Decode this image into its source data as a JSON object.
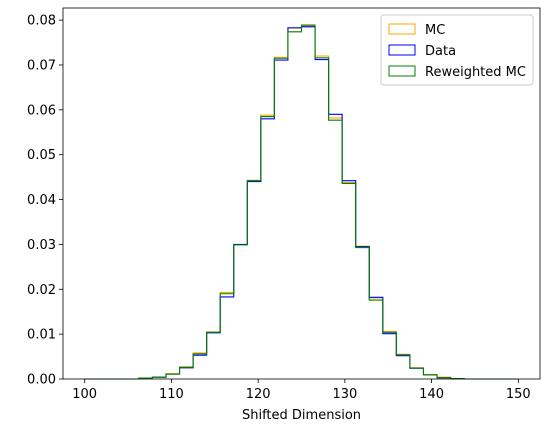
{
  "chart_data": {
    "type": "histogram-step",
    "xlabel": "Shifted Dimension",
    "ylabel": "",
    "xlim": [
      97.5,
      152.5
    ],
    "ylim": [
      0,
      0.0827
    ],
    "xticks": [
      100,
      110,
      120,
      130,
      140,
      150
    ],
    "xtick_labels": [
      "100",
      "110",
      "120",
      "130",
      "140",
      "150"
    ],
    "yticks": [
      0,
      0.01,
      0.02,
      0.03,
      0.04,
      0.05,
      0.06,
      0.07,
      0.08
    ],
    "ytick_labels": [
      "0.00",
      "0.01",
      "0.02",
      "0.03",
      "0.04",
      "0.05",
      "0.06",
      "0.07",
      "0.08"
    ],
    "grid": false,
    "legend_position": "top-right",
    "bin_edges": [
      100,
      101.5625,
      103.125,
      104.6875,
      106.25,
      107.8125,
      109.375,
      110.9375,
      112.5,
      114.0625,
      115.625,
      117.1875,
      118.75,
      120.3125,
      121.875,
      123.4375,
      125,
      126.5625,
      128.125,
      129.6875,
      131.25,
      132.8125,
      134.375,
      135.9375,
      137.5,
      139.0625,
      140.625,
      142.1875,
      143.75,
      145.3125,
      146.875,
      148.4375,
      150
    ],
    "series": [
      {
        "name": "MC",
        "color": "#ffa500",
        "values": [
          0,
          0,
          0,
          0,
          0.0002,
          0.0004,
          0.0012,
          0.0027,
          0.0058,
          0.0105,
          0.0193,
          0.0299,
          0.0443,
          0.0588,
          0.0717,
          0.0782,
          0.0787,
          0.072,
          0.0582,
          0.0438,
          0.0296,
          0.0181,
          0.0106,
          0.0055,
          0.0025,
          0.001,
          0.0004,
          0.0001,
          0,
          0,
          0,
          0
        ]
      },
      {
        "name": "Data",
        "color": "#0000ff",
        "values": [
          0,
          0,
          0,
          0,
          0.0002,
          0.0004,
          0.0011,
          0.0025,
          0.0053,
          0.0103,
          0.0183,
          0.03,
          0.044,
          0.058,
          0.0711,
          0.0783,
          0.0785,
          0.0712,
          0.059,
          0.0442,
          0.0295,
          0.0182,
          0.0101,
          0.0052,
          0.0024,
          0.0009,
          0.0003,
          0.0001,
          0,
          0,
          0,
          0
        ]
      },
      {
        "name": "Reweighted MC",
        "color": "#008000",
        "values": [
          0,
          0,
          0,
          0,
          0.0002,
          0.0004,
          0.0011,
          0.0026,
          0.0056,
          0.0104,
          0.019,
          0.0299,
          0.0442,
          0.0585,
          0.0715,
          0.0774,
          0.0789,
          0.0716,
          0.0577,
          0.0436,
          0.0293,
          0.0176,
          0.0104,
          0.0054,
          0.0024,
          0.0009,
          0.0003,
          0.0001,
          0,
          0,
          0,
          0
        ]
      }
    ]
  }
}
